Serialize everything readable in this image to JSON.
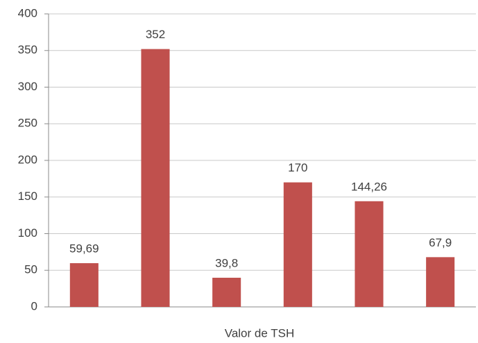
{
  "chart_data": {
    "type": "bar",
    "categories": [
      null,
      null,
      null,
      null,
      null,
      null
    ],
    "values": [
      59.69,
      352,
      39.8,
      170,
      144.26,
      67.9
    ],
    "value_labels": [
      "59,69",
      "352",
      "39,8",
      "170",
      "144,26",
      "67,9"
    ],
    "color": "#c0504d",
    "x_label": "Valor de TSH",
    "ylim": [
      0,
      400
    ],
    "yticks": [
      0,
      50,
      100,
      150,
      200,
      250,
      300,
      350,
      400
    ],
    "grid": true
  }
}
